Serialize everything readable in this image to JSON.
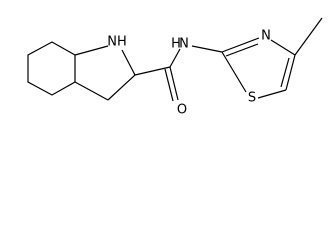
{
  "atoms": [
    {
      "label": "NH"
    },
    {
      "label": "O"
    },
    {
      "label": "N"
    },
    {
      "label": "H"
    },
    {
      "label": "N"
    },
    {
      "label": "S"
    }
  ]
}
